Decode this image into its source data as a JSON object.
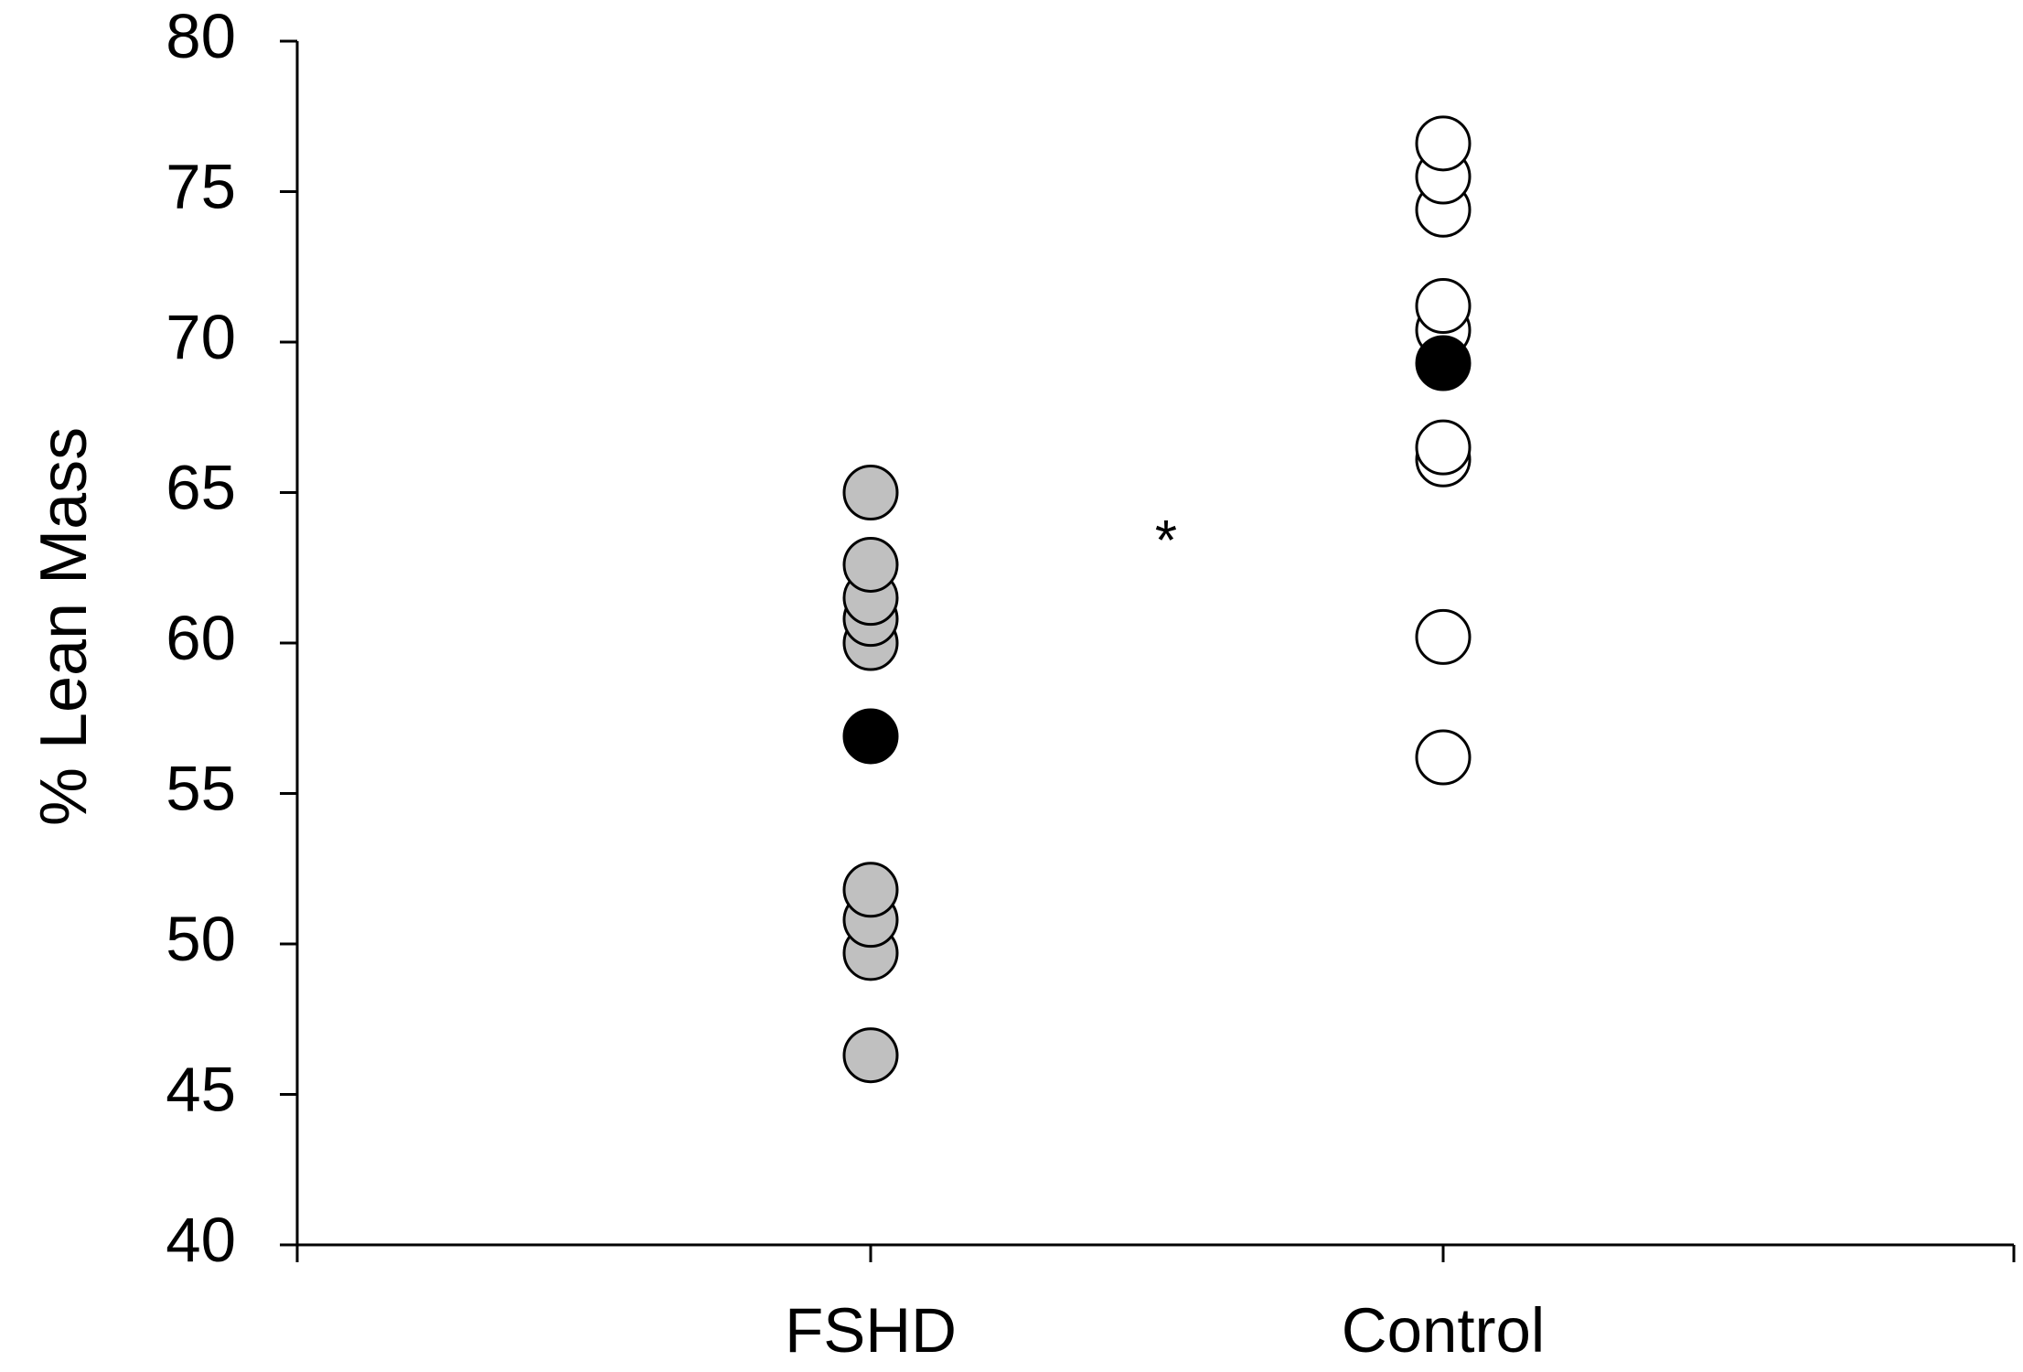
{
  "chart_data": {
    "type": "scatter",
    "title": "",
    "xlabel": "",
    "ylabel": "% Lean Mass",
    "ylim": [
      40,
      80
    ],
    "yticks": [
      40,
      45,
      50,
      55,
      60,
      65,
      70,
      75,
      80
    ],
    "categories": [
      "FSHD",
      "Control"
    ],
    "grid": false,
    "series": [
      {
        "category": "FSHD",
        "color": "#c0c0c0",
        "values": [
          65.0,
          62.6,
          61.5,
          60.8,
          60.0,
          51.8,
          50.8,
          49.7,
          46.3
        ]
      },
      {
        "category": "Control",
        "color": "#ffffff",
        "values": [
          76.6,
          75.5,
          74.4,
          71.2,
          70.4,
          66.5,
          66.1,
          60.2,
          56.2
        ]
      }
    ],
    "highlighted_points": [
      {
        "category": "FSHD",
        "value": 56.9,
        "color": "#000000"
      },
      {
        "category": "Control",
        "value": 69.3,
        "color": "#000000"
      }
    ],
    "annotation": "*"
  }
}
